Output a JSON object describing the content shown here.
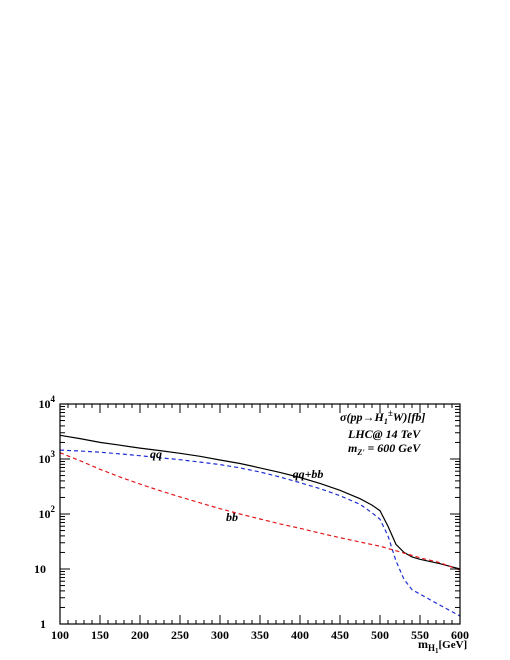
{
  "chart_data": {
    "type": "line",
    "xlim": [
      100,
      600
    ],
    "ylim": [
      1,
      10000
    ],
    "yscale": "log",
    "grid": false,
    "x_ticks": [
      "100",
      "150",
      "200",
      "250",
      "300",
      "350",
      "400",
      "450",
      "500",
      "550",
      "600"
    ],
    "y_ticks": [
      {
        "value": 1,
        "base": "1",
        "exp": ""
      },
      {
        "value": 10,
        "base": "10",
        "exp": ""
      },
      {
        "value": 100,
        "base": "10",
        "exp": "2"
      },
      {
        "value": 1000,
        "base": "10",
        "exp": "3"
      },
      {
        "value": 10000,
        "base": "10",
        "exp": "4"
      }
    ],
    "xlabel": {
      "base": "m",
      "sub": "H",
      "subsub": "1",
      "rest": "[GeV]"
    },
    "annotations": {
      "line1": "σ(pp→H",
      "line1_sub": "1",
      "line1_sup": "±",
      "line1_end": "W)[fb]",
      "line2": "LHC@ 14 TeV",
      "line3_m": "m",
      "line3_sub": "Z'",
      "line3_end": " = 600 GeV"
    },
    "series": [
      {
        "name": "qq+bb",
        "color": "#000000",
        "dash": "",
        "label_at": [
          410,
          450
        ],
        "x": [
          100,
          125,
          150,
          175,
          200,
          225,
          250,
          275,
          300,
          325,
          350,
          375,
          400,
          425,
          450,
          475,
          490,
          500,
          510,
          520,
          530,
          540,
          550,
          575,
          600
        ],
        "y": [
          2700,
          2350,
          2000,
          1780,
          1580,
          1420,
          1270,
          1120,
          960,
          830,
          690,
          570,
          460,
          360,
          270,
          190,
          145,
          115,
          60,
          28,
          20,
          16.5,
          15,
          12.5,
          10
        ]
      },
      {
        "name": "qq",
        "color": "#1f2fd6",
        "dash": "4,3",
        "label_at": [
          220,
          1050
        ],
        "x": [
          100,
          125,
          150,
          175,
          200,
          225,
          250,
          275,
          300,
          325,
          350,
          375,
          400,
          425,
          450,
          475,
          490,
          500,
          510,
          520,
          530,
          540,
          550,
          575,
          600
        ],
        "y": [
          1450,
          1400,
          1330,
          1240,
          1150,
          1050,
          970,
          880,
          790,
          690,
          580,
          470,
          370,
          290,
          215,
          150,
          105,
          80,
          40,
          14,
          6.5,
          4.2,
          3.5,
          2.2,
          1.4
        ]
      },
      {
        "name": "bb",
        "color": "#e3191c",
        "dash": "4,3",
        "label_at": [
          315,
          75
        ],
        "x": [
          100,
          125,
          150,
          175,
          200,
          225,
          250,
          275,
          300,
          325,
          350,
          375,
          400,
          425,
          450,
          475,
          500,
          525,
          550,
          575,
          600
        ],
        "y": [
          1300,
          930,
          650,
          470,
          350,
          265,
          205,
          160,
          125,
          100,
          81,
          66,
          55,
          45,
          37,
          31,
          26,
          20.5,
          16,
          13,
          9.5
        ]
      }
    ]
  }
}
